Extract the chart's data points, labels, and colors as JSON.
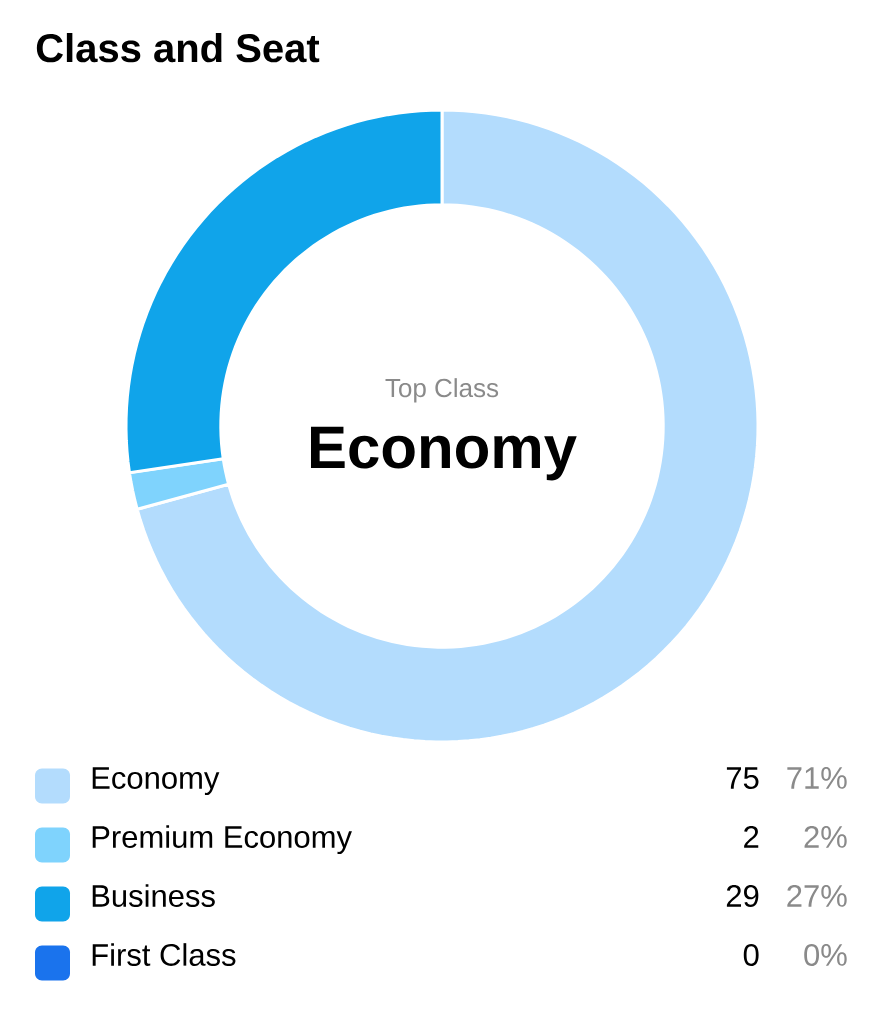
{
  "chart_data": {
    "type": "donut",
    "title": "Class and Seat",
    "categories": [
      "Economy",
      "Premium Economy",
      "Business",
      "First Class"
    ],
    "values": [
      75,
      2,
      29,
      0
    ],
    "colors": [
      "#b3dcfd",
      "#7fd3fd",
      "#10a4ea",
      "#1a73ed"
    ],
    "value_labels": [
      "75",
      "2",
      "29",
      "0"
    ],
    "annotations": [
      "Top Class",
      "Economy",
      {
        "text": "71%",
        "x": "Economy"
      },
      {
        "text": "2%",
        "x": "Premium Economy"
      },
      {
        "text": "27%",
        "x": "Business"
      },
      {
        "text": "0%",
        "x": "First Class"
      }
    ],
    "legend": "bottom"
  }
}
